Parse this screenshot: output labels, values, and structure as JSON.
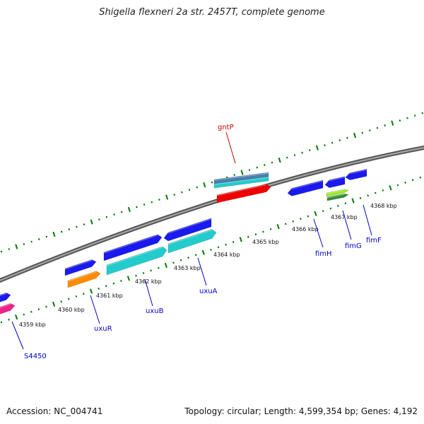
{
  "title": "Shigella flexneri 2a str. 2457T, complete genome",
  "footer": {
    "accession": "Accession: NC_004741",
    "summary": "Topology: circular; Length: 4,599,354 bp; Genes: 4,192"
  },
  "kbp_labels": [
    "4359 kbp",
    "4360 kbp",
    "4361 kbp",
    "4362 kbp",
    "4363 kbp",
    "4364 kbp",
    "4365 kbp",
    "4366 kbp",
    "4367 kbp",
    "4368 kbp"
  ],
  "genes": [
    {
      "name": "S4450",
      "color": "#0000cc"
    },
    {
      "name": "uxuR",
      "color": "#0000cc"
    },
    {
      "name": "uxuB",
      "color": "#0000cc"
    },
    {
      "name": "uxuA",
      "color": "#0000cc"
    },
    {
      "name": "gntP",
      "color": "#cc0000"
    },
    {
      "name": "fimH",
      "color": "#0000cc"
    },
    {
      "name": "fimG",
      "color": "#0000cc"
    },
    {
      "name": "fimF",
      "color": "#0000cc"
    }
  ],
  "colors": {
    "backbone": "#888888",
    "ticks": "#007a00",
    "blue_feature": "#1a1aee",
    "cyan_feature": "#22cccc",
    "orange_feature": "#ff8c00",
    "magenta_feature": "#ee2288",
    "red_feature": "#ee0000",
    "steel_feature": "#4a7fb0",
    "lime_feature": "#99ee22",
    "green_feature": "#2f8f2f"
  }
}
